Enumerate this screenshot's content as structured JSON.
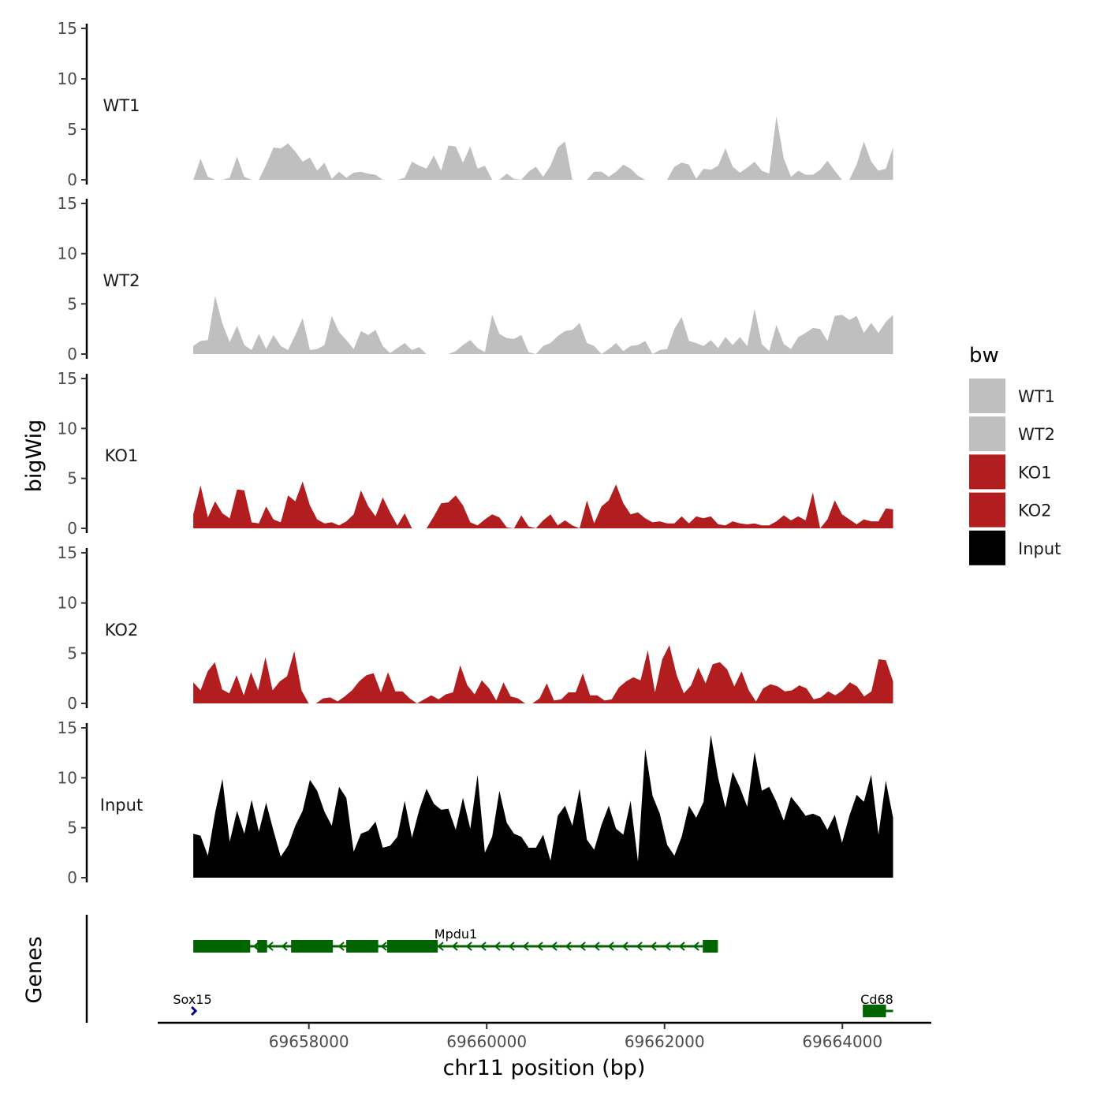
{
  "chart_data": {
    "type": "area",
    "title": "",
    "xlabel": "chr11 position (bp)",
    "ylabel": "bigWig",
    "genes_label": "Genes",
    "xlim": [
      69656300,
      69665000
    ],
    "x_start": 69656700,
    "x_end": 69664570,
    "x_ticks": [
      69658000,
      69660000,
      69662000,
      69664000
    ],
    "x_tick_labels": [
      "69658000",
      "69660000",
      "69662000",
      "69664000"
    ],
    "ylim": [
      0,
      15
    ],
    "y_ticks": [
      0,
      5,
      10,
      15
    ],
    "y_tick_labels": [
      "0",
      "5",
      "10",
      "15"
    ],
    "legend": {
      "title": "bw",
      "position": "right",
      "entries": [
        {
          "label": "WT1",
          "color": "#bfbfbf"
        },
        {
          "label": "WT2",
          "color": "#bfbfbf"
        },
        {
          "label": "KO1",
          "color": "#b21d1f"
        },
        {
          "label": "KO2",
          "color": "#b21d1f"
        },
        {
          "label": "Input",
          "color": "#000000"
        }
      ]
    },
    "series": [
      {
        "name": "WT1",
        "color": "#bfbfbf",
        "values": [
          0,
          2.1,
          0.3,
          0,
          0,
          0.2,
          2.3,
          0.3,
          0,
          0,
          1.5,
          3.2,
          3.1,
          3.6,
          2.8,
          1.8,
          2.2,
          0.9,
          1.7,
          0.1,
          0.8,
          0.2,
          0.7,
          0.8,
          0.6,
          0.5,
          0,
          0,
          0,
          0.2,
          1.8,
          1.4,
          1.1,
          2.4,
          0.9,
          3.4,
          3.3,
          1.7,
          3.3,
          1.1,
          1.4,
          0,
          0,
          0.6,
          0.1,
          0,
          0.8,
          1.3,
          0.3,
          1.4,
          3.2,
          3.8,
          0,
          0,
          0,
          0.8,
          0.8,
          0.3,
          0.8,
          1.5,
          1.1,
          0.4,
          0,
          0,
          0,
          0,
          1.3,
          1.7,
          1.5,
          0.1,
          1.1,
          1.0,
          1.4,
          3.1,
          1.3,
          0.7,
          1.2,
          1.8,
          0.9,
          0.6,
          6.3,
          2.1,
          0.3,
          0.9,
          0.5,
          0.5,
          1.0,
          1.9,
          0.9,
          0,
          0,
          1.5,
          3.8,
          1.8,
          0.9,
          1.1,
          3.2
        ]
      },
      {
        "name": "WT2",
        "color": "#bfbfbf",
        "values": [
          0.8,
          1.3,
          1.4,
          5.8,
          3.0,
          1.2,
          2.8,
          0.9,
          0.4,
          2.0,
          0.5,
          1.9,
          0.8,
          0.4,
          1.9,
          3.6,
          0.4,
          0.5,
          0.9,
          3.8,
          2.2,
          1.4,
          0.5,
          2.3,
          1.9,
          2.4,
          0.8,
          0.1,
          0.6,
          1.1,
          0.4,
          0.7,
          0,
          0,
          0,
          0,
          0.3,
          0.9,
          1.4,
          0.6,
          0.2,
          3.9,
          2.0,
          1.6,
          1.5,
          1.9,
          0.2,
          0,
          0.8,
          1.1,
          1.8,
          2.3,
          2.4,
          3.1,
          1.1,
          0.8,
          0,
          0.5,
          1.1,
          0.3,
          0.8,
          0.9,
          1.3,
          0,
          0.4,
          0.5,
          2.5,
          3.7,
          1.3,
          1.1,
          0.8,
          1.4,
          0.6,
          1.7,
          0.9,
          1.7,
          0.8,
          4.5,
          1.0,
          0.3,
          2.9,
          1.0,
          0.5,
          1.7,
          2.1,
          2.6,
          2.5,
          1.3,
          3.8,
          3.9,
          3.4,
          3.8,
          2.1,
          3.1,
          2.1,
          3.2,
          3.9
        ]
      },
      {
        "name": "KO1",
        "color": "#b21d1f",
        "values": [
          1.4,
          4.3,
          1.1,
          2.7,
          1.5,
          1.0,
          3.9,
          3.8,
          0.6,
          0.5,
          2.2,
          0.9,
          0.6,
          3.3,
          2.7,
          4.7,
          2.3,
          0.9,
          0.5,
          0.6,
          0.3,
          0.7,
          1.4,
          3.8,
          2.2,
          1.2,
          3.1,
          1.6,
          0.3,
          1.5,
          0,
          0,
          0,
          1.2,
          2.5,
          2.6,
          3.3,
          2.3,
          0.6,
          0.3,
          0.9,
          1.4,
          1.1,
          0.1,
          0,
          1.3,
          0.2,
          0,
          0.8,
          1.4,
          0.3,
          0.8,
          0.3,
          0,
          2.8,
          0.5,
          2.2,
          2.8,
          4.4,
          2.5,
          1.4,
          1.6,
          1.0,
          0.6,
          0.7,
          0.5,
          0.5,
          1.2,
          0.5,
          1.2,
          1.0,
          1.2,
          0.4,
          0.3,
          0.7,
          0.5,
          0.4,
          0.5,
          0.3,
          0.3,
          0.7,
          1.3,
          0.8,
          1.2,
          0.8,
          3.6,
          0,
          0.9,
          2.8,
          1.4,
          0.9,
          0.4,
          0.9,
          0.7,
          0.7,
          2.0,
          1.9
        ]
      },
      {
        "name": "KO2",
        "color": "#b21d1f",
        "values": [
          2.1,
          1.3,
          3.2,
          4.1,
          1.4,
          1.0,
          2.8,
          0.8,
          3.1,
          1.3,
          4.6,
          1.3,
          2.2,
          2.7,
          5.2,
          1.3,
          0,
          0,
          0.5,
          0.6,
          0.2,
          0.7,
          1.3,
          2.2,
          2.8,
          3.0,
          1.1,
          3.1,
          1.2,
          1.2,
          0.5,
          0,
          0.4,
          0.8,
          0.4,
          0.9,
          1.1,
          3.8,
          1.8,
          0.9,
          2.3,
          1.5,
          0.3,
          2.1,
          0.7,
          0.5,
          0,
          0,
          0.5,
          2.0,
          0.3,
          0.4,
          1.1,
          1.1,
          3.0,
          0.8,
          0.8,
          0.3,
          0.4,
          1.6,
          2.2,
          2.6,
          2.3,
          5.3,
          1.1,
          4.4,
          5.8,
          2.8,
          1.0,
          1.8,
          3.6,
          2.0,
          3.9,
          4.1,
          3.4,
          1.7,
          3.2,
          1.3,
          0.2,
          1.5,
          1.9,
          1.7,
          1.2,
          1.3,
          1.8,
          1.5,
          0.4,
          0.6,
          1.2,
          0.8,
          1.3,
          2.1,
          1.7,
          0.7,
          1.2,
          4.4,
          4.3,
          2.2
        ]
      },
      {
        "name": "Input",
        "color": "#000000",
        "values": [
          4.4,
          4.2,
          2.2,
          6.5,
          9.9,
          3.6,
          6.7,
          4.4,
          7.8,
          4.6,
          7.5,
          4.7,
          2.1,
          3.2,
          5.2,
          6.7,
          9.8,
          8.7,
          6.6,
          5.2,
          9.1,
          8.0,
          2.6,
          4.4,
          4.7,
          5.6,
          3.0,
          3.2,
          4.1,
          7.7,
          4.0,
          6.8,
          8.9,
          7.4,
          6.8,
          6.9,
          4.8,
          8.0,
          4.9,
          10.3,
          2.5,
          4.1,
          8.7,
          5.5,
          4.4,
          4.1,
          3.0,
          3.0,
          4.3,
          1.7,
          6.2,
          7.2,
          5.2,
          8.9,
          3.8,
          2.8,
          5.3,
          7.2,
          4.9,
          4.3,
          7.7,
          1.6,
          12.9,
          8.2,
          6.4,
          3.3,
          2.2,
          4.1,
          7.2,
          6.0,
          7.6,
          14.3,
          10.0,
          7.0,
          10.6,
          9.0,
          7.1,
          12.6,
          8.7,
          9.1,
          7.6,
          5.7,
          8.1,
          7.2,
          6.2,
          6.4,
          6.1,
          4.8,
          6.3,
          3.5,
          6.2,
          8.3,
          7.6,
          10.3,
          4.3,
          9.7,
          6.0
        ]
      }
    ],
    "genes": [
      {
        "name": "Mpdu1",
        "strand": "-",
        "start": 69656700,
        "end": 69662550,
        "exons": [
          [
            69656700,
            69657340
          ],
          [
            69657420,
            69657530
          ],
          [
            69657800,
            69658270
          ],
          [
            69658420,
            69658780
          ],
          [
            69658880,
            69659450
          ],
          [
            69662430,
            69662600
          ]
        ]
      },
      {
        "name": "Sox15",
        "strand": "+",
        "start": 69656700,
        "end": 69656740,
        "exons": []
      },
      {
        "name": "Cd68",
        "strand": "-",
        "start": 69664230,
        "end": 69664570,
        "exons": [
          [
            69664230,
            69664490
          ]
        ]
      }
    ]
  }
}
